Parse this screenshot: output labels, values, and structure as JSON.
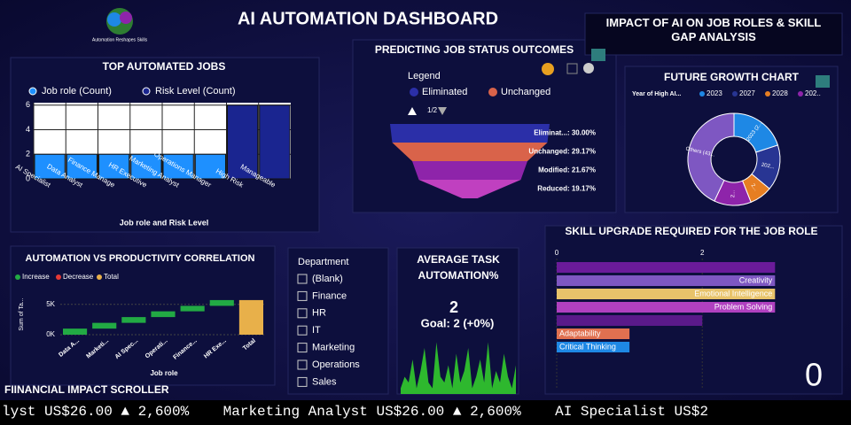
{
  "header": {
    "logo_text": "Automation Reshapes Skills",
    "title": "AI AUTOMATION DASHBOARD",
    "impact_title": "IMPACT OF AI ON JOB ROLES & SKILL GAP ANALYSIS"
  },
  "top_jobs": {
    "type": "bar",
    "title": "TOP AUTOMATED JOBS",
    "x_label": "Job role and Risk Level",
    "categories": [
      "AI Specialist",
      "Data Analyst",
      "Finance Manage",
      "HR Executive",
      "Marketing Analyst",
      "Operations Manager",
      "High Risk",
      "Manageable"
    ],
    "series": [
      {
        "name": "Job role (Count)",
        "color": "#1e90ff",
        "values": [
          2,
          2,
          2,
          2,
          2,
          2,
          null,
          null
        ]
      },
      {
        "name": "Risk Level (Count)",
        "color": "#1a2590",
        "values": [
          null,
          null,
          null,
          null,
          null,
          null,
          6,
          6
        ]
      }
    ],
    "ylim": [
      0,
      6.2
    ],
    "yticks": [
      0,
      2,
      4,
      6
    ],
    "grid": true
  },
  "funnel": {
    "type": "funnel",
    "title": "PREDICTING JOB STATUS OUTCOMES",
    "legend_title": "Legend",
    "legend": [
      {
        "name": "Eliminated",
        "color": "#2b2fa8"
      },
      {
        "name": "Unchanged",
        "color": "#d9634a"
      }
    ],
    "page": "1/2",
    "values": [
      30,
      29.17,
      21.67,
      19.17
    ],
    "value_labels": [
      "Eliminat...: 30.00%",
      "Unchanged: 29.17%",
      "Modified: 21.67%",
      "Reduced: 19.17%"
    ],
    "colors": [
      "#2b2fa8",
      "#d9634a",
      "#8e24aa",
      "#c040c0"
    ]
  },
  "growth": {
    "type": "donut",
    "title": "FUTURE GROWTH CHART",
    "legend_title": "Year of High AI...",
    "categories": [
      "2023",
      "2027",
      "2028",
      "202..",
      null
    ],
    "values": [
      20,
      16,
      8,
      13,
      43
    ],
    "value_labels": [
      "2023 (2...",
      "202...",
      "2...",
      "2...",
      "Others (43..."
    ],
    "colors": [
      "#1e88e5",
      "#283593",
      "#e67e22",
      "#8e24aa",
      "#7e57c2"
    ]
  },
  "productivity": {
    "type": "waterfall",
    "title": "AUTOMATION VS PRODUCTIVITY CORRELATION",
    "legend": [
      {
        "name": "Increase",
        "color": "#22aa44"
      },
      {
        "name": "Decrease",
        "color": "#e53935"
      },
      {
        "name": "Total",
        "color": "#e8b04a"
      }
    ],
    "categories": [
      "Data A...",
      "Marketi...",
      "AI Spec...",
      "Operati...",
      "Finance...",
      "HR Exe...",
      "Total"
    ],
    "values": [
      1000,
      950,
      950,
      950,
      900,
      950,
      5700
    ],
    "y_label": "Sum of Ta...",
    "x_label": "Job role",
    "ylim": [
      0,
      7000
    ],
    "yticks": [
      {
        "value": 0,
        "label": "0K"
      },
      {
        "value": 5000,
        "label": "5K"
      }
    ]
  },
  "department": {
    "title": "Department",
    "options": [
      "(Blank)",
      "Finance",
      "HR",
      "IT",
      "Marketing",
      "Operations",
      "Sales"
    ]
  },
  "average_task": {
    "title": "AVERAGE TASK AUTOMATION%",
    "value": 2,
    "goal_label": "Goal: 2 (+0%)",
    "sparkline": [
      1,
      3,
      2,
      6,
      1,
      4,
      8,
      2,
      1,
      9,
      3,
      2,
      5,
      1,
      7,
      2,
      4,
      8,
      1,
      3,
      6,
      2,
      9,
      1,
      4,
      2,
      7,
      3,
      1,
      5
    ],
    "ylim": [
      0,
      10
    ]
  },
  "skills": {
    "type": "hbar",
    "title": "SKILL UPGRADE REQUIRED FOR THE JOB ROLE",
    "categories": [
      null,
      "Creativity",
      "Emotional Intelligence",
      "Problem Solving",
      null,
      "Adaptability",
      "Critical Thinking"
    ],
    "values": [
      3,
      3,
      3,
      3,
      2,
      1,
      1
    ],
    "colors": [
      "#6a1b9a",
      "#7e57c2",
      "#e8c36a",
      "#b040c0",
      "#5a1a8a",
      "#e07050",
      "#1e88e5"
    ],
    "xlim": [
      0,
      3.8
    ],
    "xticks": [
      0,
      2
    ]
  },
  "card": {
    "value": 0
  },
  "ticker": {
    "title": "FIINANCIAL IMPACT SCROLLER",
    "text": "lyst US$26.00 ▲ 2,600%    Marketing Analyst US$26.00 ▲ 2,600%    AI Specialist US$2"
  }
}
